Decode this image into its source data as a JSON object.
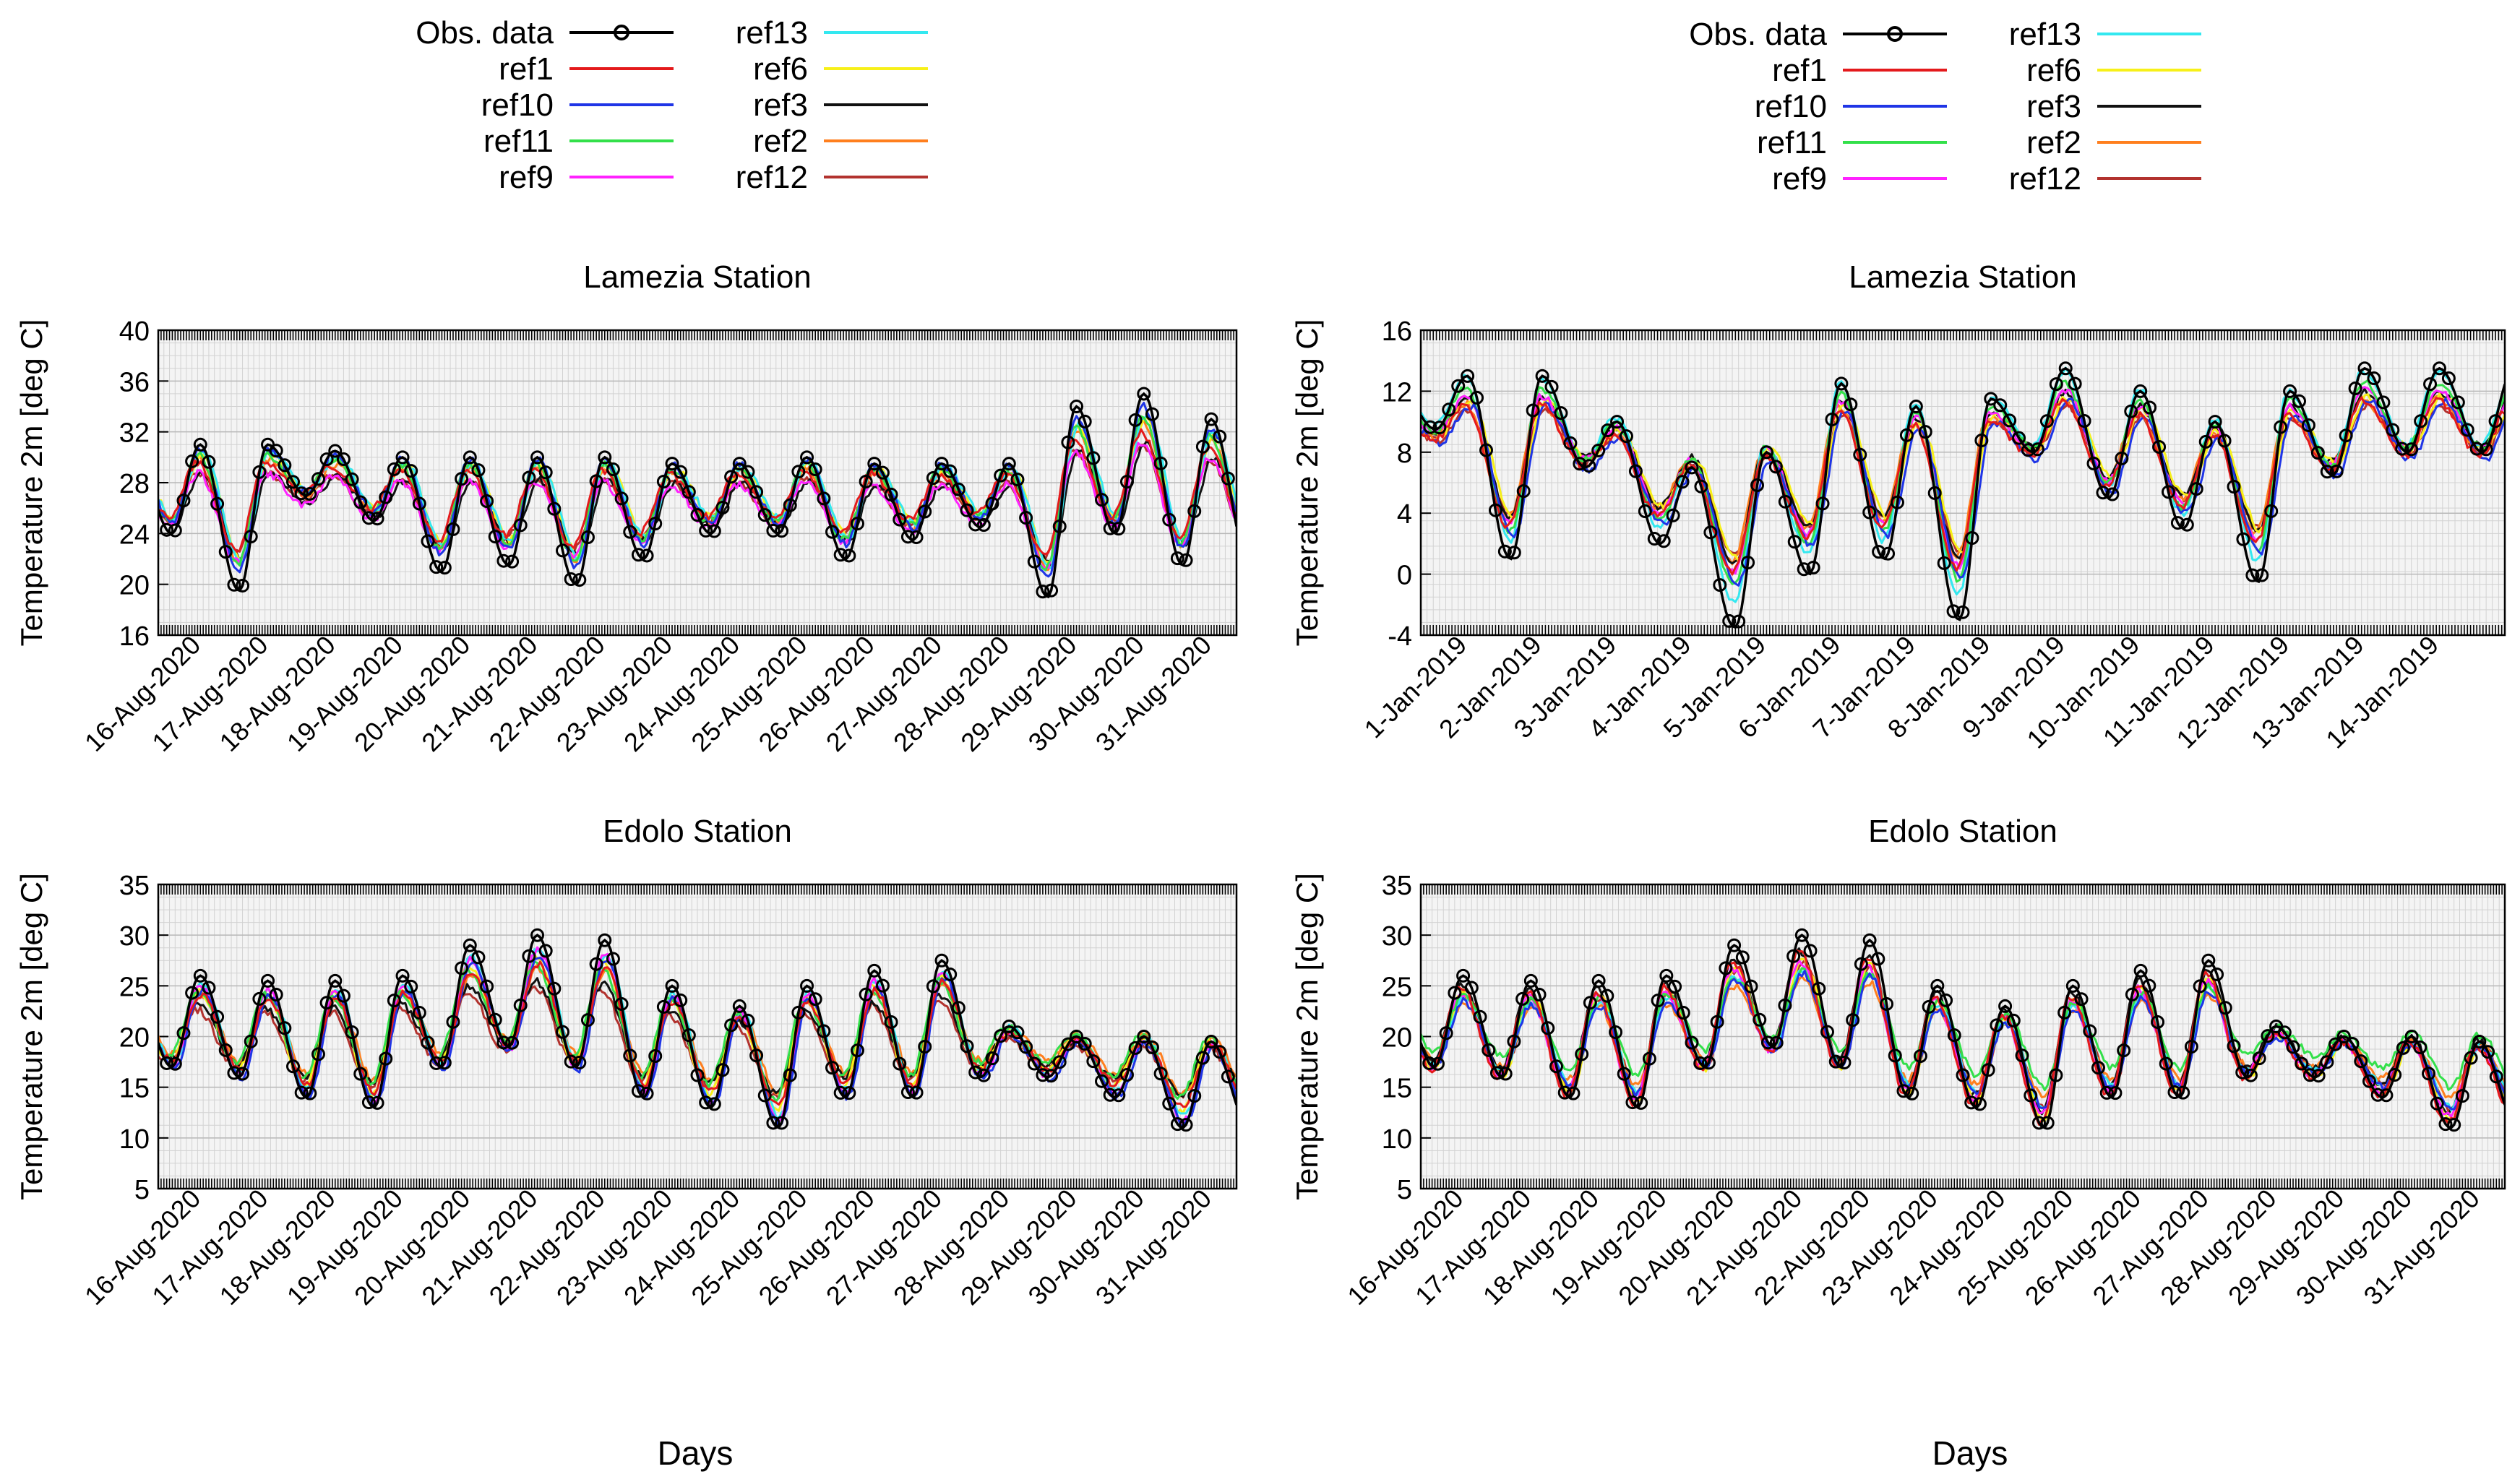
{
  "figure": {
    "legend_entries": [
      {
        "name": "Obs. data",
        "color": "#000000",
        "marker": "circle"
      },
      {
        "name": "ref1",
        "color": "#e41a1c"
      },
      {
        "name": "ref10",
        "color": "#1f35e6"
      },
      {
        "name": "ref11",
        "color": "#33e04a"
      },
      {
        "name": "ref9",
        "color": "#ff22ff"
      },
      {
        "name": "ref13",
        "color": "#33e8f0"
      },
      {
        "name": "ref6",
        "color": "#f7f019"
      },
      {
        "name": "ref3",
        "color": "#111111"
      },
      {
        "name": "ref2",
        "color": "#ff7f1e"
      },
      {
        "name": "ref12",
        "color": "#b2322e"
      }
    ],
    "xlabel_left": "Days",
    "xlabel_right": "Days"
  },
  "chart_data": [
    {
      "type": "line",
      "title": "Lamezia Station",
      "ylabel": "Temperature 2m [deg C]",
      "ylim": [
        16,
        40
      ],
      "yticks": [
        16,
        20,
        24,
        28,
        32,
        36,
        40
      ],
      "grid": true,
      "xrange_days": [
        0,
        16
      ],
      "xticks": [
        {
          "label": "16-Aug-2020",
          "day": 0.5
        },
        {
          "label": "17-Aug-2020",
          "day": 1.5
        },
        {
          "label": "18-Aug-2020",
          "day": 2.5
        },
        {
          "label": "19-Aug-2020",
          "day": 3.5
        },
        {
          "label": "20-Aug-2020",
          "day": 4.5
        },
        {
          "label": "21-Aug-2020",
          "day": 5.5
        },
        {
          "label": "22-Aug-2020",
          "day": 6.5
        },
        {
          "label": "23-Aug-2020",
          "day": 7.5
        },
        {
          "label": "24-Aug-2020",
          "day": 8.5
        },
        {
          "label": "25-Aug-2020",
          "day": 9.5
        },
        {
          "label": "26-Aug-2020",
          "day": 10.5
        },
        {
          "label": "27-Aug-2020",
          "day": 11.5
        },
        {
          "label": "28-Aug-2020",
          "day": 12.5
        },
        {
          "label": "29-Aug-2020",
          "day": 13.5
        },
        {
          "label": "30-Aug-2020",
          "day": 14.5
        },
        {
          "label": "31-Aug-2020",
          "day": 15.5
        }
      ],
      "obs_daily": [
        {
          "min": 24,
          "max": 31
        },
        {
          "min": 19.5,
          "max": 31
        },
        {
          "min": 27,
          "max": 30.5
        },
        {
          "min": 25,
          "max": 30
        },
        {
          "min": 21,
          "max": 30
        },
        {
          "min": 21.5,
          "max": 30
        },
        {
          "min": 20,
          "max": 30
        },
        {
          "min": 22,
          "max": 29.5
        },
        {
          "min": 24,
          "max": 29.5
        },
        {
          "min": 24,
          "max": 30
        },
        {
          "min": 22,
          "max": 29.5
        },
        {
          "min": 23.5,
          "max": 29.5
        },
        {
          "min": 24.5,
          "max": 29.5
        },
        {
          "min": 19,
          "max": 34
        },
        {
          "min": 24,
          "max": 35
        },
        {
          "min": 21.5,
          "max": 33
        }
      ],
      "model_daily_mean_range": {
        "min": 24.5,
        "max": 29
      }
    },
    {
      "type": "line",
      "title": "Lamezia Station",
      "ylabel": "Temperature 2m [deg C]",
      "ylim": [
        -4,
        16
      ],
      "yticks": [
        -4,
        0,
        4,
        8,
        12,
        16
      ],
      "grid": true,
      "xrange_days": [
        0,
        14.5
      ],
      "xticks": [
        {
          "label": "1-Jan-2019",
          "day": 0.5
        },
        {
          "label": "2-Jan-2019",
          "day": 1.5
        },
        {
          "label": "3-Jan-2019",
          "day": 2.5
        },
        {
          "label": "4-Jan-2019",
          "day": 3.5
        },
        {
          "label": "5-Jan-2019",
          "day": 4.5
        },
        {
          "label": "6-Jan-2019",
          "day": 5.5
        },
        {
          "label": "7-Jan-2019",
          "day": 6.5
        },
        {
          "label": "8-Jan-2019",
          "day": 7.5
        },
        {
          "label": "9-Jan-2019",
          "day": 8.5
        },
        {
          "label": "10-Jan-2019",
          "day": 9.5
        },
        {
          "label": "11-Jan-2019",
          "day": 10.5
        },
        {
          "label": "12-Jan-2019",
          "day": 11.5
        },
        {
          "label": "13-Jan-2019",
          "day": 12.5
        },
        {
          "label": "14-Jan-2019",
          "day": 13.5
        }
      ],
      "obs_daily": [
        {
          "min": 9.5,
          "max": 13
        },
        {
          "min": 1,
          "max": 13
        },
        {
          "min": 7,
          "max": 10
        },
        {
          "min": 2,
          "max": 7
        },
        {
          "min": -3.5,
          "max": 8
        },
        {
          "min": 0,
          "max": 12.5
        },
        {
          "min": 1,
          "max": 11
        },
        {
          "min": -3,
          "max": 11.5
        },
        {
          "min": 8,
          "max": 13.5
        },
        {
          "min": 5,
          "max": 12
        },
        {
          "min": 3,
          "max": 10
        },
        {
          "min": -0.5,
          "max": 12
        },
        {
          "min": 6.5,
          "max": 13.5
        },
        {
          "min": 8,
          "max": 13.5
        }
      ],
      "model_daily_mean_range": {
        "min": 4,
        "max": 12
      }
    },
    {
      "type": "line",
      "title": "Edolo Station",
      "ylabel": "Temperature 2m [deg C]",
      "ylim": [
        5,
        35
      ],
      "yticks": [
        5,
        10,
        15,
        20,
        25,
        30,
        35
      ],
      "grid": true,
      "xrange_days": [
        0,
        16
      ],
      "xticks": [
        {
          "label": "16-Aug-2020",
          "day": 0.5
        },
        {
          "label": "17-Aug-2020",
          "day": 1.5
        },
        {
          "label": "18-Aug-2020",
          "day": 2.5
        },
        {
          "label": "19-Aug-2020",
          "day": 3.5
        },
        {
          "label": "20-Aug-2020",
          "day": 4.5
        },
        {
          "label": "21-Aug-2020",
          "day": 5.5
        },
        {
          "label": "22-Aug-2020",
          "day": 6.5
        },
        {
          "label": "23-Aug-2020",
          "day": 7.5
        },
        {
          "label": "24-Aug-2020",
          "day": 8.5
        },
        {
          "label": "25-Aug-2020",
          "day": 9.5
        },
        {
          "label": "26-Aug-2020",
          "day": 10.5
        },
        {
          "label": "27-Aug-2020",
          "day": 11.5
        },
        {
          "label": "28-Aug-2020",
          "day": 12.5
        },
        {
          "label": "29-Aug-2020",
          "day": 13.5
        },
        {
          "label": "30-Aug-2020",
          "day": 14.5
        },
        {
          "label": "31-Aug-2020",
          "day": 15.5
        }
      ],
      "obs_daily": [
        {
          "min": 17,
          "max": 26
        },
        {
          "min": 16,
          "max": 25.5
        },
        {
          "min": 14,
          "max": 25.5
        },
        {
          "min": 13,
          "max": 26
        },
        {
          "min": 17,
          "max": 29
        },
        {
          "min": 19,
          "max": 30
        },
        {
          "min": 17,
          "max": 29.5
        },
        {
          "min": 14,
          "max": 25
        },
        {
          "min": 13,
          "max": 23
        },
        {
          "min": 11,
          "max": 25
        },
        {
          "min": 14,
          "max": 26.5
        },
        {
          "min": 14,
          "max": 27.5
        },
        {
          "min": 16,
          "max": 21
        },
        {
          "min": 16,
          "max": 20
        },
        {
          "min": 14,
          "max": 20
        },
        {
          "min": 11,
          "max": 19.5
        }
      ],
      "model_daily_mean_range": {
        "min": 15,
        "max": 24
      }
    },
    {
      "type": "line",
      "title": "Edolo Station",
      "ylabel": "Temperature 2m [deg C]",
      "ylim": [
        5,
        35
      ],
      "yticks": [
        5,
        10,
        15,
        20,
        25,
        30,
        35
      ],
      "grid": true,
      "xrange_days": [
        0,
        16
      ],
      "xticks": [
        {
          "label": "16-Aug-2020",
          "day": 0.5
        },
        {
          "label": "17-Aug-2020",
          "day": 1.5
        },
        {
          "label": "18-Aug-2020",
          "day": 2.5
        },
        {
          "label": "19-Aug-2020",
          "day": 3.5
        },
        {
          "label": "20-Aug-2020",
          "day": 4.5
        },
        {
          "label": "21-Aug-2020",
          "day": 5.5
        },
        {
          "label": "22-Aug-2020",
          "day": 6.5
        },
        {
          "label": "23-Aug-2020",
          "day": 7.5
        },
        {
          "label": "24-Aug-2020",
          "day": 8.5
        },
        {
          "label": "25-Aug-2020",
          "day": 9.5
        },
        {
          "label": "26-Aug-2020",
          "day": 10.5
        },
        {
          "label": "27-Aug-2020",
          "day": 11.5
        },
        {
          "label": "28-Aug-2020",
          "day": 12.5
        },
        {
          "label": "29-Aug-2020",
          "day": 13.5
        },
        {
          "label": "30-Aug-2020",
          "day": 14.5
        },
        {
          "label": "31-Aug-2020",
          "day": 15.5
        }
      ],
      "obs_daily": [
        {
          "min": 17,
          "max": 26
        },
        {
          "min": 16,
          "max": 25.5
        },
        {
          "min": 14,
          "max": 25.5
        },
        {
          "min": 13,
          "max": 26
        },
        {
          "min": 17,
          "max": 29
        },
        {
          "min": 19,
          "max": 30
        },
        {
          "min": 17,
          "max": 29.5
        },
        {
          "min": 14,
          "max": 25
        },
        {
          "min": 13,
          "max": 23
        },
        {
          "min": 11,
          "max": 25
        },
        {
          "min": 14,
          "max": 26.5
        },
        {
          "min": 14,
          "max": 27.5
        },
        {
          "min": 16,
          "max": 21
        },
        {
          "min": 16,
          "max": 20
        },
        {
          "min": 14,
          "max": 20
        },
        {
          "min": 11,
          "max": 19.5
        }
      ],
      "model_daily_mean_range": {
        "min": 15,
        "max": 24
      }
    }
  ]
}
